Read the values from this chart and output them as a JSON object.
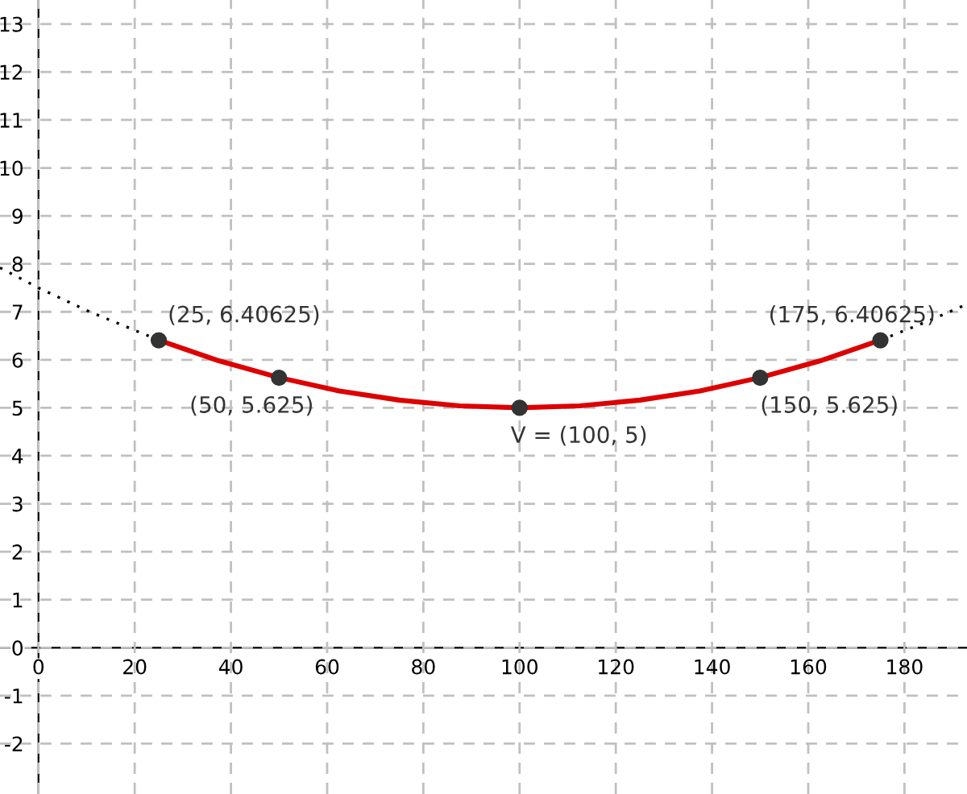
{
  "chart_data": {
    "type": "line",
    "xlim": [
      -8,
      193
    ],
    "ylim": [
      -3.05,
      13.5
    ],
    "xticks": [
      0,
      20,
      40,
      60,
      80,
      100,
      120,
      140,
      160,
      180
    ],
    "yticks": [
      -2,
      -1,
      0,
      1,
      2,
      3,
      4,
      5,
      6,
      7,
      8,
      9,
      10,
      11,
      12,
      13
    ],
    "grid": true,
    "series": [
      {
        "color": "#000000",
        "line_style": "dotted",
        "x": [
          -8,
          0,
          10,
          25
        ],
        "values": [
          7.92,
          7.5,
          7.03,
          6.41
        ]
      },
      {
        "color": "#000000",
        "line_style": "dotted",
        "x": [
          175,
          185,
          193
        ],
        "values": [
          6.41,
          6.81,
          7.16
        ]
      },
      {
        "color": "#dd0000",
        "line_style": "solid",
        "x": [
          25,
          37.5,
          50,
          62.5,
          75,
          87.5,
          100,
          112.5,
          125,
          137.5,
          150,
          162.5,
          175
        ],
        "values": [
          6.41,
          5.98,
          5.63,
          5.35,
          5.16,
          5.04,
          5.0,
          5.04,
          5.16,
          5.35,
          5.63,
          5.98,
          6.41
        ]
      },
      {
        "type": "scatter",
        "color": "#333333",
        "marker": "circle",
        "x": [
          25,
          50,
          100,
          150,
          175
        ],
        "values": [
          6.40625,
          5.625,
          5,
          5.625,
          6.40625
        ]
      }
    ],
    "annotations": [
      {
        "text": "(25, 6.40625)",
        "x": 25,
        "y": 6.40625
      },
      {
        "text": "(50, 5.625)",
        "x": 50,
        "y": 5.625
      },
      {
        "text": "V = (100, 5)",
        "x": 100,
        "y": 5
      },
      {
        "text": "(150, 5.625)",
        "x": 150,
        "y": 5.625
      },
      {
        "text": "(175, 6.40625)",
        "x": 175,
        "y": 6.40625
      }
    ]
  }
}
